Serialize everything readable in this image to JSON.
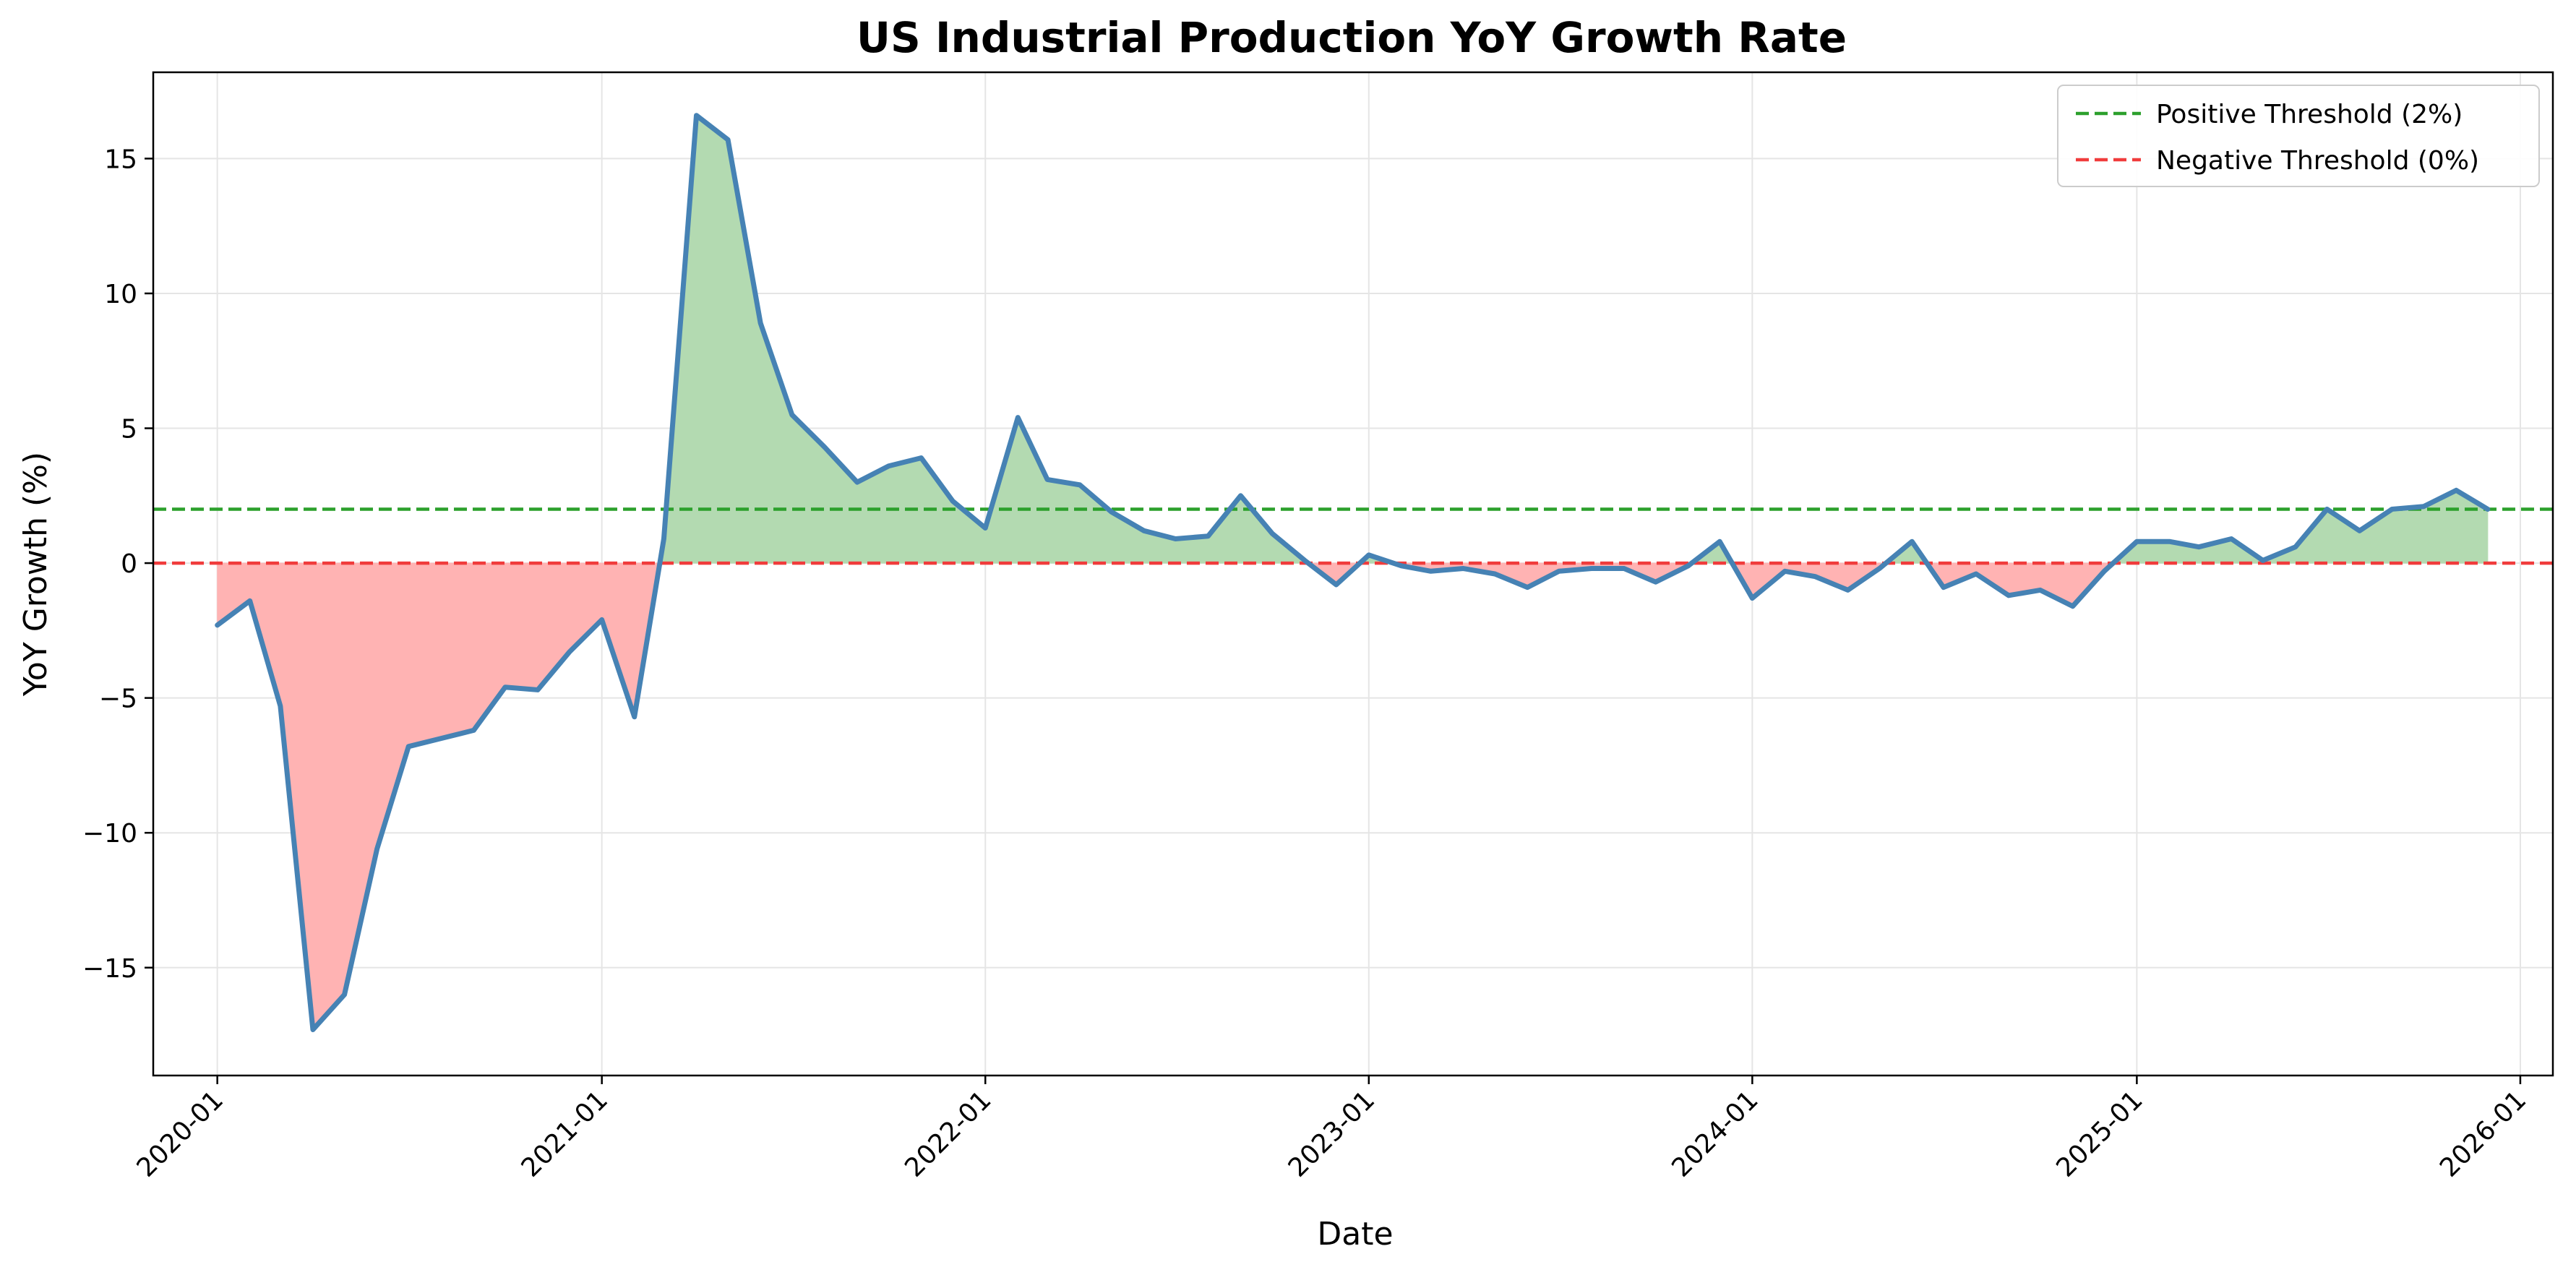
{
  "chart_data": {
    "type": "line",
    "title": "US Industrial Production YoY Growth Rate",
    "xlabel": "Date",
    "ylabel": "YoY Growth (%)",
    "xlim": [
      "2019-11-01",
      "2026-02-01"
    ],
    "ylim": [
      -19.0,
      18.2
    ],
    "grid": true,
    "legend_position": "top-right",
    "x_ticks": [
      "2020-01-01",
      "2021-01-01",
      "2022-01-01",
      "2023-01-01",
      "2024-01-01",
      "2025-01-01",
      "2026-01-01"
    ],
    "x_tick_labels": [
      "2020-01",
      "2021-01",
      "2022-01",
      "2023-01",
      "2024-01",
      "2025-01",
      "2026-01"
    ],
    "y_ticks": [
      -15,
      -10,
      -5,
      0,
      5,
      10,
      15
    ],
    "y_tick_labels": [
      "−15",
      "−10",
      "−5",
      "0",
      "5",
      "10",
      "15"
    ],
    "series": [
      {
        "name": "YoY Growth",
        "color": "#4682b4",
        "x": [
          "2020-01-01",
          "2020-02-01",
          "2020-03-01",
          "2020-04-01",
          "2020-05-01",
          "2020-06-01",
          "2020-07-01",
          "2020-08-01",
          "2020-09-01",
          "2020-10-01",
          "2020-11-01",
          "2020-12-01",
          "2021-01-01",
          "2021-02-01",
          "2021-03-01",
          "2021-04-01",
          "2021-05-01",
          "2021-06-01",
          "2021-07-01",
          "2021-08-01",
          "2021-09-01",
          "2021-10-01",
          "2021-11-01",
          "2021-12-01",
          "2022-01-01",
          "2022-02-01",
          "2022-03-01",
          "2022-04-01",
          "2022-05-01",
          "2022-06-01",
          "2022-07-01",
          "2022-08-01",
          "2022-09-01",
          "2022-10-01",
          "2022-11-01",
          "2022-12-01",
          "2023-01-01",
          "2023-02-01",
          "2023-03-01",
          "2023-04-01",
          "2023-05-01",
          "2023-06-01",
          "2023-07-01",
          "2023-08-01",
          "2023-09-01",
          "2023-10-01",
          "2023-11-01",
          "2023-12-01",
          "2024-01-01",
          "2024-02-01",
          "2024-03-01",
          "2024-04-01",
          "2024-05-01",
          "2024-06-01",
          "2024-07-01",
          "2024-08-01",
          "2024-09-01",
          "2024-10-01",
          "2024-11-01",
          "2024-12-01",
          "2025-01-01",
          "2025-02-01",
          "2025-03-01",
          "2025-04-01",
          "2025-05-01",
          "2025-06-01",
          "2025-07-01",
          "2025-08-01",
          "2025-09-01",
          "2025-10-01",
          "2025-11-01",
          "2025-12-01"
        ],
        "values": [
          -2.3,
          -1.4,
          -5.3,
          -17.3,
          -16.0,
          -10.6,
          -6.8,
          -6.5,
          -6.2,
          -4.6,
          -4.7,
          -3.3,
          -2.1,
          -5.7,
          0.9,
          16.6,
          15.7,
          8.9,
          5.5,
          4.3,
          3.0,
          3.6,
          3.9,
          2.3,
          1.3,
          5.4,
          3.1,
          2.9,
          1.9,
          1.2,
          0.9,
          1.0,
          2.5,
          1.1,
          0.1,
          -0.8,
          0.3,
          -0.1,
          -0.3,
          -0.2,
          -0.4,
          -0.9,
          -0.3,
          -0.2,
          -0.2,
          -0.7,
          -0.1,
          0.8,
          -1.3,
          -0.3,
          -0.5,
          -1.0,
          -0.2,
          0.8,
          -0.9,
          -0.4,
          -1.2,
          -1.0,
          -1.6,
          -0.3,
          0.8,
          0.8,
          0.6,
          0.9,
          0.1,
          0.6,
          2.0,
          1.2,
          2.0,
          2.1,
          2.7,
          2.0
        ]
      }
    ],
    "thresholds": [
      {
        "name": "Positive Threshold (2%)",
        "value": 2,
        "color": "#2ca02c"
      },
      {
        "name": "Negative Threshold (0%)",
        "value": 0,
        "color": "#f03c3c"
      }
    ],
    "fill_colors": {
      "above_positive": "#b3dab1",
      "below_negative": "#ffb3b3"
    }
  }
}
